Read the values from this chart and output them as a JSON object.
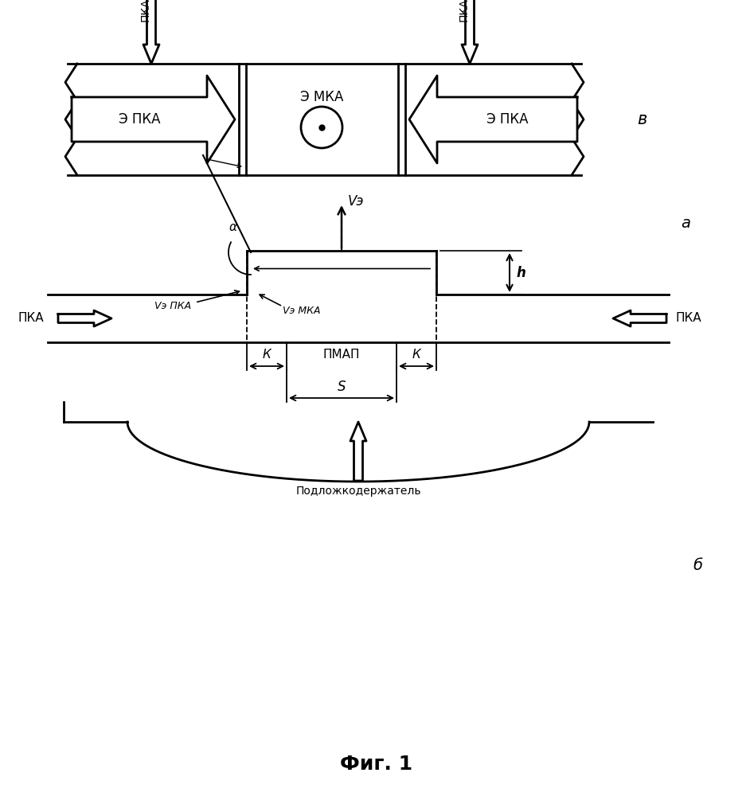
{
  "bg_color": "#ffffff",
  "title": "Фиг. 1",
  "label_a": "а",
  "label_b": "б",
  "label_v": "в",
  "pka_label": "ПКА",
  "epka_label": "Э ПКА",
  "emka_label": "Э МКА",
  "ve_label": "Vэ",
  "vepka_label": "Vэ ПКА",
  "vemka_label": "Vэ МКА",
  "k_label": "К",
  "pmap_label": "ПМАП",
  "s_label": "S",
  "alpha_label": "α",
  "h_label": "h",
  "podlozhka_label": "Подложкодержатель"
}
